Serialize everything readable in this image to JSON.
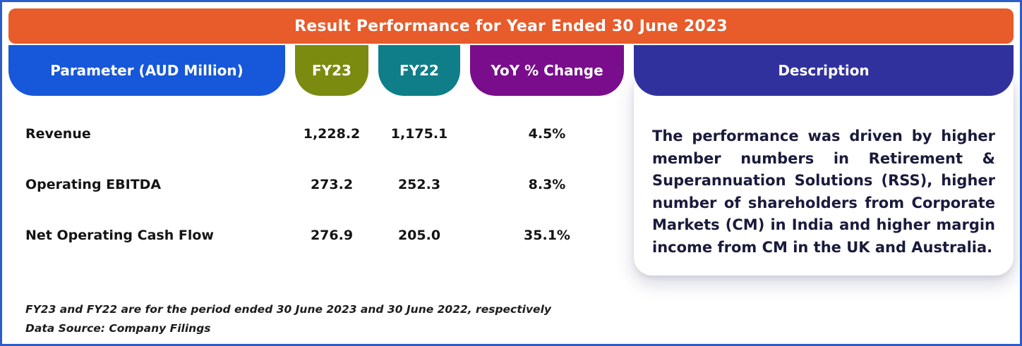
{
  "banner": {
    "title": "Result Performance for Year Ended 30 June 2023"
  },
  "columns": {
    "parameter": "Parameter (AUD Million)",
    "fy23": "FY23",
    "fy22": "FY22",
    "yoy": "YoY % Change",
    "description": "Description"
  },
  "rows": [
    {
      "parameter": "Revenue",
      "fy23": "1,228.2",
      "fy22": "1,175.1",
      "yoy": "4.5%"
    },
    {
      "parameter": "Operating EBITDA",
      "fy23": "273.2",
      "fy22": "252.3",
      "yoy": "8.3%"
    },
    {
      "parameter": "Net Operating Cash Flow",
      "fy23": "276.9",
      "fy22": "205.0",
      "yoy": "35.1%"
    }
  ],
  "description": {
    "text": "The performance was driven by higher member numbers in Retirement & Superannuation Solutions (RSS), higher number of shareholders from Corporate Markets (CM) in India and higher margin income from CM in the UK and Australia."
  },
  "footnotes": [
    "FY23 and FY22 are for the period ended 30 June 2023 and 30 June 2022, respectively",
    "Data Source: Company Filings"
  ],
  "colors": {
    "banner_orange": "#E85B2B",
    "parameter_blue": "#1757D9",
    "fy23_olive": "#7B8B10",
    "fy22_teal": "#0F7E88",
    "yoy_purple": "#790D8C",
    "description_indigo": "#31319E",
    "frame_border_blue": "#2B5CC9"
  },
  "chart_data": {
    "type": "table",
    "title": "Result Performance for Year Ended 30 June 2023",
    "columns": [
      "Parameter (AUD Million)",
      "FY23",
      "FY22",
      "YoY % Change"
    ],
    "rows": [
      [
        "Revenue",
        1228.2,
        1175.1,
        "4.5%"
      ],
      [
        "Operating EBITDA",
        273.2,
        252.3,
        "8.3%"
      ],
      [
        "Net Operating Cash Flow",
        276.9,
        205.0,
        "35.1%"
      ]
    ],
    "notes": "FY23 and FY22 are for the period ended 30 June 2023 and 30 June 2022, respectively. Data Source: Company Filings."
  }
}
